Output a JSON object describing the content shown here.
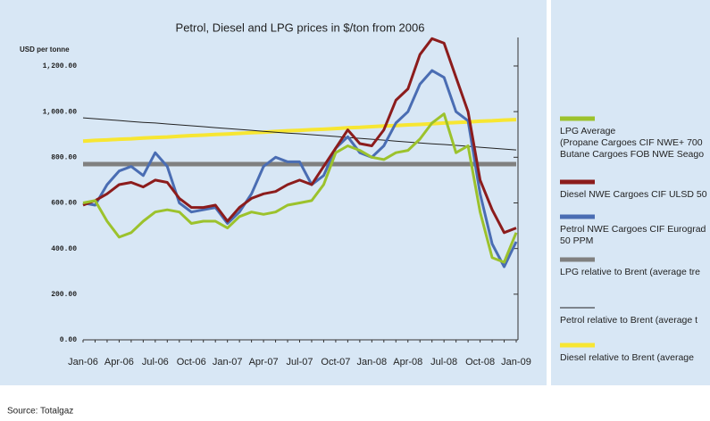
{
  "chart_data": {
    "type": "line",
    "title": "Petrol, Diesel and LPG prices in $/ton from 2006",
    "y_label": "USD per tonne",
    "source": "Source: Totalgaz",
    "categories": [
      "Jan-06",
      null,
      null,
      "Apr-06",
      null,
      null,
      "Jul-06",
      null,
      null,
      "Oct-06",
      null,
      null,
      "Jan-07",
      null,
      null,
      "Apr-07",
      null,
      null,
      "Jul-07",
      null,
      null,
      "Oct-07",
      null,
      null,
      "Jan-08",
      null,
      null,
      "Apr-08",
      null,
      null,
      "Jul-08",
      null,
      null,
      "Oct-08",
      null,
      null,
      "Jan-09"
    ],
    "ylim": [
      0,
      1325
    ],
    "yticks": [
      {
        "value": 0,
        "label": "0.00"
      },
      {
        "value": 200,
        "label": "200.00"
      },
      {
        "value": 400,
        "label": "400.00"
      },
      {
        "value": 600,
        "label": "600.00"
      },
      {
        "value": 800,
        "label": "800.00"
      },
      {
        "value": 1000,
        "label": "1,000.00"
      },
      {
        "value": 1200,
        "label": "1,200.00"
      }
    ],
    "series": [
      {
        "name": "LPG Average\n(Propane Cargoes CIF NWE+ 700\nButane Cargoes FOB NWE Seago",
        "color": "#9cc22c",
        "line_width": 3,
        "values": [
          600,
          610,
          520,
          450,
          470,
          520,
          560,
          570,
          560,
          510,
          520,
          520,
          490,
          540,
          560,
          550,
          560,
          590,
          600,
          610,
          680,
          820,
          850,
          830,
          800,
          790,
          820,
          830,
          880,
          950,
          990,
          820,
          850,
          560,
          360,
          340,
          470
        ]
      },
      {
        "name": "Diesel NWE Cargoes CIF ULSD 50",
        "color": "#8c1c1c",
        "line_width": 3,
        "values": [
          590,
          610,
          640,
          680,
          690,
          670,
          700,
          690,
          620,
          580,
          580,
          590,
          520,
          580,
          620,
          640,
          650,
          680,
          700,
          680,
          760,
          840,
          920,
          860,
          850,
          920,
          1050,
          1100,
          1250,
          1320,
          1300,
          1150,
          1000,
          700,
          570,
          470,
          490
        ]
      },
      {
        "name": "Petrol NWE Cargoes CIF Eurograd\n50 PPM",
        "color": "#4a6db3",
        "line_width": 3,
        "values": [
          600,
          590,
          680,
          740,
          760,
          720,
          820,
          760,
          600,
          560,
          570,
          580,
          510,
          560,
          640,
          760,
          800,
          780,
          780,
          680,
          720,
          840,
          890,
          820,
          800,
          850,
          950,
          1000,
          1120,
          1180,
          1150,
          1000,
          960,
          640,
          420,
          320,
          430
        ]
      },
      {
        "name": "LPG relative to Brent (average tre",
        "color": "#808080",
        "line_width": 5,
        "values": [
          770,
          770,
          770,
          770,
          770,
          770,
          770,
          770,
          770,
          770,
          770,
          770,
          770,
          770,
          770,
          770,
          770,
          770,
          770,
          770,
          770,
          770,
          770,
          770,
          770,
          770,
          770,
          770,
          770,
          770,
          770,
          770,
          770,
          770,
          770,
          770,
          770
        ]
      },
      {
        "name": "Petrol relative to Brent (average t",
        "color": "#222222",
        "line_width": 1,
        "values": [
          973,
          969,
          965,
          961,
          957,
          953,
          950,
          946,
          942,
          938,
          934,
          930,
          926,
          922,
          918,
          914,
          910,
          906,
          903,
          899,
          895,
          891,
          887,
          883,
          879,
          875,
          871,
          867,
          863,
          859,
          856,
          852,
          848,
          844,
          840,
          836,
          832
        ]
      },
      {
        "name": "Diesel relative to Brent (average",
        "color": "#f7e632",
        "line_width": 4,
        "values": [
          871,
          874,
          876,
          879,
          881,
          884,
          887,
          889,
          892,
          895,
          897,
          900,
          902,
          905,
          908,
          910,
          913,
          916,
          918,
          921,
          923,
          926,
          929,
          931,
          934,
          937,
          939,
          942,
          944,
          947,
          950,
          952,
          955,
          958,
          960,
          963,
          965
        ]
      }
    ]
  }
}
